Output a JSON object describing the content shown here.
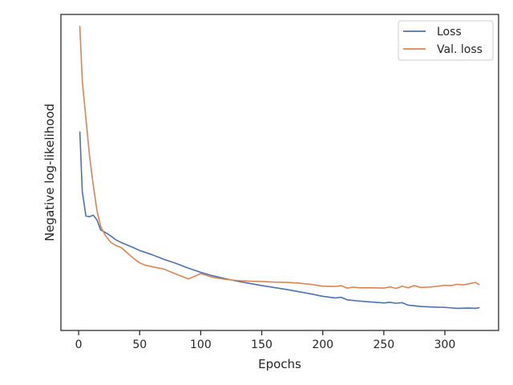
{
  "chart_data": {
    "type": "line",
    "title": "",
    "xlabel": "Epochs",
    "ylabel": "Negative log-likelihood",
    "xlim": [
      -14.5,
      344
    ],
    "ylim": [
      0,
      1
    ],
    "xticks": [
      0,
      50,
      100,
      150,
      200,
      250,
      300
    ],
    "xtick_labels": [
      "0",
      "50",
      "100",
      "150",
      "200",
      "250",
      "300"
    ],
    "yticks_shown": false,
    "grid": false,
    "legend": {
      "position": "top-right"
    },
    "series": [
      {
        "name": "Loss",
        "color": "#4c72b0",
        "x": [
          1,
          3,
          6,
          9,
          12,
          15,
          18,
          22,
          26,
          30,
          35,
          40,
          45,
          50,
          60,
          70,
          80,
          90,
          100,
          110,
          120,
          130,
          140,
          150,
          160,
          170,
          180,
          190,
          200,
          210,
          215,
          220,
          230,
          240,
          250,
          255,
          260,
          265,
          270,
          280,
          290,
          300,
          310,
          320,
          325,
          328
        ],
        "y": [
          0.628,
          0.44,
          0.362,
          0.36,
          0.365,
          0.35,
          0.318,
          0.31,
          0.3,
          0.288,
          0.278,
          0.27,
          0.262,
          0.253,
          0.24,
          0.225,
          0.212,
          0.197,
          0.184,
          0.173,
          0.164,
          0.156,
          0.149,
          0.142,
          0.136,
          0.13,
          0.123,
          0.116,
          0.108,
          0.103,
          0.105,
          0.097,
          0.093,
          0.09,
          0.087,
          0.089,
          0.086,
          0.088,
          0.08,
          0.076,
          0.074,
          0.073,
          0.07,
          0.071,
          0.07,
          0.072
        ]
      },
      {
        "name": "Val. loss",
        "color": "#dd8452",
        "x": [
          1,
          3,
          6,
          9,
          12,
          15,
          18,
          22,
          26,
          30,
          35,
          40,
          45,
          50,
          55,
          60,
          70,
          80,
          90,
          100,
          110,
          120,
          130,
          140,
          150,
          160,
          170,
          180,
          190,
          200,
          210,
          215,
          220,
          225,
          230,
          240,
          250,
          255,
          260,
          265,
          270,
          275,
          280,
          290,
          300,
          305,
          310,
          315,
          320,
          325,
          328
        ],
        "y": [
          0.962,
          0.79,
          0.67,
          0.55,
          0.46,
          0.38,
          0.33,
          0.3,
          0.28,
          0.27,
          0.262,
          0.245,
          0.228,
          0.214,
          0.206,
          0.202,
          0.194,
          0.178,
          0.163,
          0.18,
          0.168,
          0.162,
          0.158,
          0.156,
          0.155,
          0.153,
          0.152,
          0.15,
          0.146,
          0.14,
          0.139,
          0.142,
          0.134,
          0.137,
          0.135,
          0.135,
          0.134,
          0.138,
          0.133,
          0.14,
          0.135,
          0.142,
          0.136,
          0.138,
          0.143,
          0.142,
          0.146,
          0.144,
          0.148,
          0.152,
          0.145
        ]
      }
    ]
  }
}
